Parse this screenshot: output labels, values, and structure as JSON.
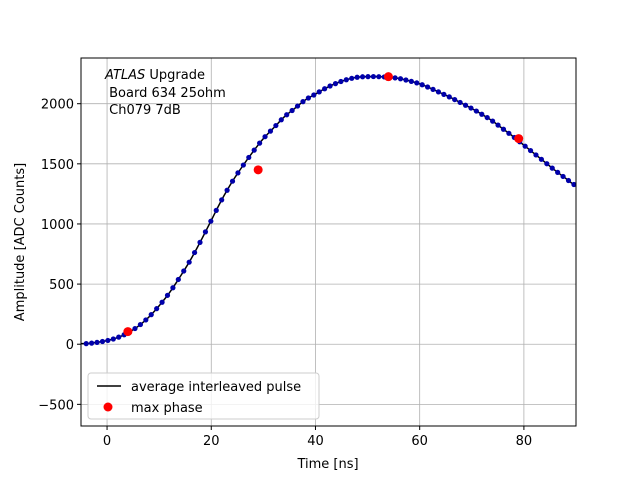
{
  "chart_data": {
    "type": "scatter",
    "xlabel": "Time [ns]",
    "ylabel": "Amplitude [ADC Counts]",
    "xlim": [
      -5,
      90
    ],
    "ylim": [
      -680,
      2380
    ],
    "xticks": [
      0,
      20,
      40,
      60,
      80
    ],
    "yticks": [
      -500,
      0,
      500,
      1000,
      1500,
      2000
    ],
    "xtick_labels": [
      "0",
      "20",
      "40",
      "60",
      "80"
    ],
    "ytick_labels": [
      "−500",
      "0",
      "500",
      "1000",
      "1500",
      "2000"
    ],
    "grid": true,
    "annotation": {
      "line1_italic": "ATLAS",
      "line1_rest": " Upgrade",
      "line2": " Board 634 25ohm",
      "line3": " Ch079 7dB"
    },
    "legend": {
      "placement": "lower-left",
      "entries": [
        "average interleaved pulse",
        "max phase"
      ]
    },
    "series": [
      {
        "name": "average interleaved pulse",
        "style": "dense blue markers over black line",
        "color": "#0000aa",
        "x": [
          -4,
          -2,
          0,
          2,
          4,
          6,
          8,
          10,
          12,
          14,
          16,
          18,
          20,
          22,
          24,
          26,
          28,
          30,
          32,
          34,
          36,
          38,
          40,
          42,
          44,
          46,
          48,
          50,
          52,
          54,
          56,
          58,
          60,
          62,
          64,
          66,
          68,
          70,
          72,
          74,
          76,
          78,
          80,
          82,
          84,
          86,
          88,
          90
        ],
        "y": [
          5,
          15,
          30,
          55,
          95,
          150,
          225,
          320,
          430,
          560,
          700,
          860,
          1030,
          1200,
          1350,
          1480,
          1600,
          1710,
          1800,
          1890,
          1960,
          2030,
          2080,
          2130,
          2170,
          2200,
          2220,
          2225,
          2225,
          2220,
          2210,
          2190,
          2165,
          2130,
          2090,
          2050,
          2005,
          1960,
          1910,
          1855,
          1790,
          1725,
          1655,
          1585,
          1515,
          1445,
          1380,
          1320
        ]
      },
      {
        "name": "max phase",
        "color": "#ff0000",
        "x": [
          4,
          29,
          54,
          79
        ],
        "y": [
          105,
          1450,
          2225,
          1710
        ]
      }
    ]
  }
}
